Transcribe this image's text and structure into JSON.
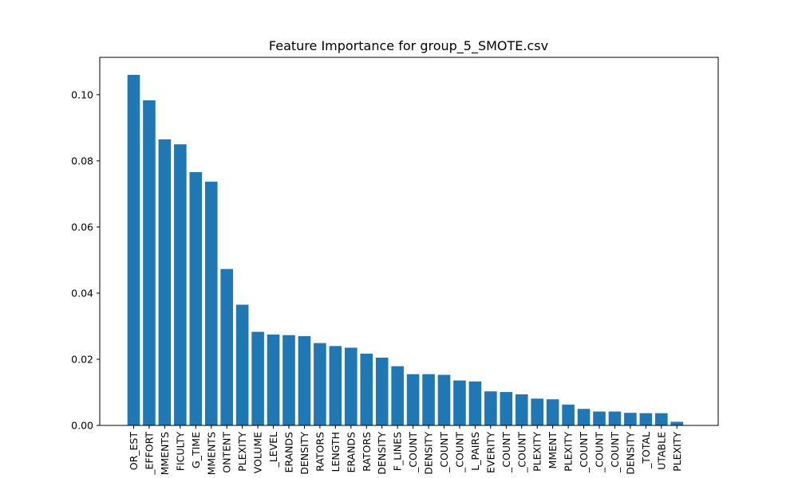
{
  "chart_data": {
    "type": "bar",
    "title": "Feature Importance for group_5_SMOTE.csv",
    "xlabel": "",
    "ylabel": "",
    "ylim": [
      0,
      0.1113
    ],
    "yticks": [
      0.0,
      0.02,
      0.04,
      0.06,
      0.08,
      0.1
    ],
    "ytick_labels": [
      "0.00",
      "0.02",
      "0.04",
      "0.06",
      "0.08",
      "0.10"
    ],
    "grid": false,
    "bar_color": "#1f77b4",
    "categories": [
      "OR_EST",
      "_EFFORT",
      "MMENTS",
      "FICULTY",
      "G_TIME",
      "MMENTS",
      "ONTENT",
      "PLEXITY",
      "VOLUME",
      "_LEVEL",
      "ERANDS",
      "DENSITY",
      "RATORS",
      "LENGTH",
      "ERANDS",
      "RATORS",
      "DENSITY",
      "F_LINES",
      "_COUNT",
      "DENSITY",
      "_COUNT",
      "_COUNT",
      "L_PAIRS",
      "EVERITY",
      "_COUNT",
      "_COUNT",
      "PLEXITY",
      "MMENT",
      "PLEXITY",
      "_COUNT",
      "_COUNT",
      "_COUNT",
      "DENSITY",
      "_TOTAL",
      "UTABLE",
      "PLEXITY"
    ],
    "values": [
      0.106,
      0.0983,
      0.0865,
      0.085,
      0.0766,
      0.0737,
      0.0473,
      0.0365,
      0.0283,
      0.0275,
      0.0273,
      0.027,
      0.0249,
      0.024,
      0.0235,
      0.0217,
      0.0205,
      0.0179,
      0.0155,
      0.0155,
      0.0153,
      0.0136,
      0.0133,
      0.0103,
      0.0101,
      0.0094,
      0.0081,
      0.0079,
      0.0063,
      0.005,
      0.0042,
      0.0042,
      0.0038,
      0.0037,
      0.0037,
      0.0011
    ]
  }
}
